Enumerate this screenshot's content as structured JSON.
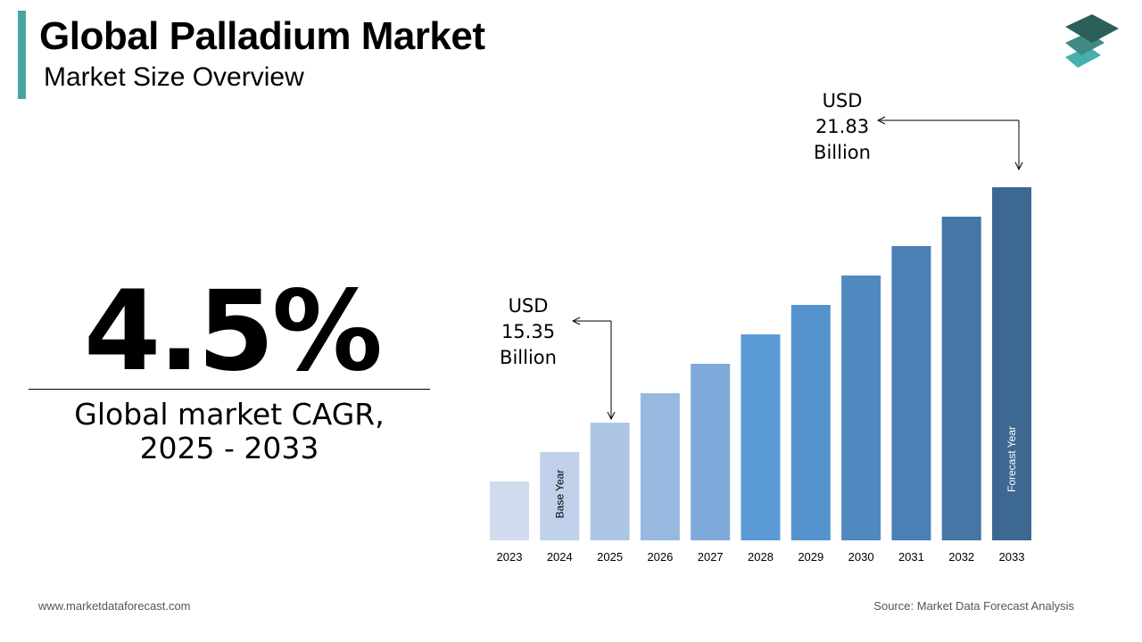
{
  "header": {
    "title": "Global Palladium Market",
    "subtitle": "Market Size Overview"
  },
  "highlight": {
    "cagr": "4.5%",
    "label_line1": "Global market CAGR,",
    "label_line2": "2025 - 2033"
  },
  "annotations": [
    {
      "year": "2025",
      "line1": "USD",
      "line2": "15.35",
      "line3": "Billion"
    },
    {
      "year": "2033",
      "line1": "USD",
      "line2": "21.83",
      "line3": "Billion"
    }
  ],
  "footer": {
    "website": "www.marketdataforecast.com",
    "source": "Source: Market Data Forecast Analysis"
  },
  "logo": {
    "icon": "stacked-layers-icon",
    "colors": [
      "#2d5f59",
      "#3f8a84",
      "#45b0ac"
    ]
  },
  "chart_data": {
    "type": "bar",
    "title": "",
    "xlabel": "",
    "ylabel": "",
    "categories": [
      "2023",
      "2024",
      "2025",
      "2026",
      "2027",
      "2028",
      "2029",
      "2030",
      "2031",
      "2032",
      "2033"
    ],
    "values": [
      null,
      null,
      15.35,
      null,
      null,
      null,
      null,
      null,
      null,
      null,
      21.83
    ],
    "unit": "USD Billion",
    "bar_labels": {
      "2024": "Base Year",
      "2033": "Forecast Year"
    },
    "colors": [
      "#d0dcee",
      "#bfd1ea",
      "#adc6e6",
      "#97b9e0",
      "#7eaadb",
      "#5b9bd5",
      "#5593cf",
      "#4f89c0",
      "#4a80b5",
      "#4476a6",
      "#3d6891"
    ],
    "grid": false,
    "axis_shown": false
  }
}
